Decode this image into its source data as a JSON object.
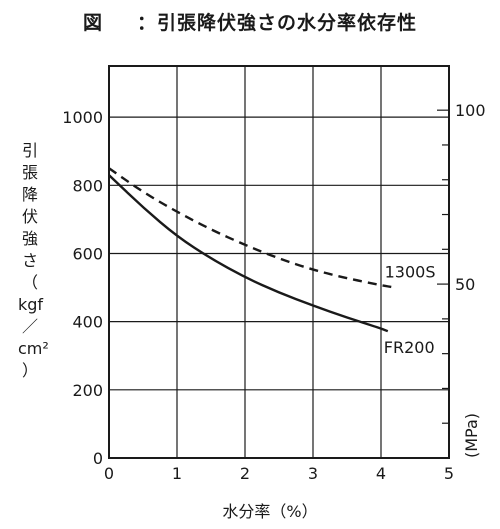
{
  "figure": {
    "fig_label": "図",
    "title": "：引張降伏強さの水分率依存性"
  },
  "chart_data": {
    "type": "line",
    "title": "図　：引張降伏強さの水分率依存性",
    "xlabel": "水分率（%）",
    "ylabel_left": [
      "引",
      "張",
      "降",
      "伏",
      "強",
      "さ",
      "（",
      "kgf",
      "／",
      "cm²",
      "）"
    ],
    "ylabel_right": "(MPa)",
    "xlim": [
      0,
      5
    ],
    "ylim": [
      0,
      1150
    ],
    "x_ticks": [
      0,
      1,
      2,
      3,
      4,
      5
    ],
    "y_ticks": [
      0,
      200,
      400,
      600,
      800,
      1000
    ],
    "y2_ticks": [
      50,
      100
    ],
    "y2_per_y1": 0.098,
    "grid": true,
    "series": [
      {
        "name": "1300S",
        "style": "dashed",
        "x": [
          0.0,
          0.5,
          1.0,
          1.5,
          2.0,
          2.5,
          3.0,
          3.5,
          4.0,
          4.2
        ],
        "y": [
          850,
          780,
          722,
          670,
          625,
          585,
          552,
          527,
          507,
          500
        ]
      },
      {
        "name": "FR200",
        "style": "solid",
        "x": [
          0.0,
          0.5,
          1.0,
          1.5,
          2.0,
          2.5,
          3.0,
          3.5,
          4.0,
          4.1
        ],
        "y": [
          830,
          735,
          650,
          585,
          530,
          485,
          447,
          412,
          380,
          372
        ]
      }
    ]
  }
}
